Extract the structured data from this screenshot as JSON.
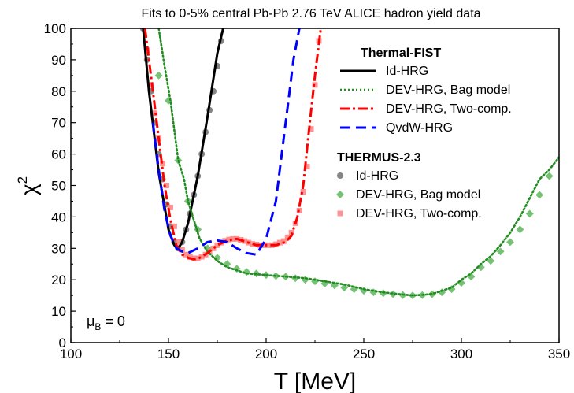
{
  "chart_data": {
    "type": "line",
    "title": "Fits to 0-5% central Pb-Pb 2.76 TeV ALICE hadron yield data",
    "xlabel": "T [MeV]",
    "ylabel_base": "χ",
    "ylabel_sup": "2",
    "xlim": [
      100,
      350
    ],
    "ylim": [
      0,
      100
    ],
    "xticks": [
      100,
      150,
      200,
      250,
      300,
      350
    ],
    "yticks": [
      0,
      10,
      20,
      30,
      40,
      50,
      60,
      70,
      80,
      90,
      100
    ],
    "annotation": {
      "base": "μ",
      "sub": "B",
      "rest": " = 0"
    },
    "legend": {
      "group1_title": "Thermal-FIST",
      "group2_title": "THERMUS-2.3"
    },
    "series": [
      {
        "name": "Id-HRG",
        "group": "Thermal-FIST",
        "style": "solid",
        "color": "#000000",
        "x": [
          137,
          140,
          145,
          150,
          153,
          155,
          157,
          160,
          165,
          170,
          175,
          178
        ],
        "y": [
          100,
          80,
          54,
          36,
          31,
          30,
          32,
          38,
          53,
          72,
          92,
          100
        ]
      },
      {
        "name": "DEV-HRG, Bag model",
        "group": "Thermal-FIST",
        "style": "dotted",
        "color": "#228B22",
        "x": [
          145,
          148,
          151,
          155,
          158,
          160,
          163,
          166,
          170,
          175,
          180,
          190,
          200,
          210,
          220,
          230,
          240,
          250,
          260,
          270,
          275,
          280,
          285,
          290,
          295,
          300,
          305,
          310,
          315,
          320,
          325,
          330,
          335,
          340,
          345,
          350
        ],
        "y": [
          100,
          88,
          77,
          58,
          52,
          45,
          39,
          33,
          29,
          26,
          24,
          22,
          21.5,
          21,
          20.5,
          19.5,
          18.5,
          17,
          16,
          15.3,
          15,
          15.2,
          15.5,
          16.5,
          17.5,
          20,
          22,
          25,
          27.5,
          31,
          35,
          40,
          46,
          52,
          55,
          59
        ]
      },
      {
        "name": "DEV-HRG, Two-comp.",
        "group": "Thermal-FIST",
        "style": "dashdot",
        "color": "#ff0000",
        "x": [
          138,
          142,
          145,
          148,
          151,
          154,
          157,
          160,
          163,
          166,
          170,
          175,
          180,
          185,
          190,
          195,
          200,
          205,
          210,
          213,
          216,
          219,
          222,
          225,
          228
        ],
        "y": [
          100,
          80,
          65,
          50,
          39,
          31,
          28,
          27,
          26.5,
          27,
          28.5,
          31,
          32.5,
          33,
          32,
          31,
          31,
          31,
          32,
          34,
          40,
          50,
          68,
          85,
          100
        ]
      },
      {
        "name": "QvdW-HRG",
        "group": "Thermal-FIST",
        "style": "dashed",
        "color": "#0000ff",
        "x": [
          142,
          145,
          148,
          151,
          154,
          157,
          160,
          165,
          170,
          175,
          180,
          185,
          190,
          195,
          200,
          205,
          208,
          211,
          214,
          217
        ],
        "y": [
          70,
          55,
          42,
          34,
          30,
          29,
          28.5,
          30,
          32,
          32.5,
          32,
          30,
          28.5,
          28,
          33,
          45,
          60,
          75,
          90,
          100
        ]
      },
      {
        "name": "Id-HRG",
        "group": "THERMUS-2.3",
        "style": "marker-circle",
        "color": "#707070",
        "x": [
          137,
          139,
          141,
          143,
          145,
          147,
          149,
          151,
          153,
          155,
          157,
          159,
          161,
          163,
          165,
          167,
          169,
          171,
          173,
          175,
          177
        ],
        "y": [
          100,
          90,
          80,
          70,
          60,
          52,
          44,
          37,
          32,
          30,
          32,
          36,
          41,
          47,
          53,
          60,
          67,
          74,
          80,
          88,
          96
        ]
      },
      {
        "name": "DEV-HRG, Bag model",
        "group": "THERMUS-2.3",
        "style": "marker-diamond",
        "color": "#66bb66",
        "x": [
          145,
          150,
          155,
          160,
          165,
          170,
          175,
          180,
          185,
          190,
          195,
          200,
          205,
          210,
          215,
          220,
          225,
          230,
          235,
          240,
          245,
          250,
          255,
          260,
          265,
          270,
          275,
          280,
          285,
          290,
          295,
          300,
          305,
          310,
          315,
          320,
          325,
          330,
          335,
          340,
          345
        ],
        "y": [
          85,
          77,
          58,
          45,
          36,
          30,
          27,
          25,
          23.5,
          22.5,
          22,
          21.5,
          21.2,
          21,
          20.5,
          20,
          19.5,
          18.8,
          18.2,
          17.5,
          17,
          16.5,
          16,
          15.7,
          15.4,
          15.1,
          15,
          15.1,
          15.4,
          16,
          17,
          19,
          21,
          24,
          26,
          29,
          32,
          36,
          41,
          47,
          53
        ]
      },
      {
        "name": "DEV-HRG, Two-comp.",
        "group": "THERMUS-2.3",
        "style": "marker-square",
        "color": "#ff8080",
        "x": [
          139,
          141,
          143,
          145,
          147,
          149,
          151,
          153,
          155,
          157,
          159,
          161,
          163,
          165,
          167,
          169,
          171,
          173,
          175,
          177,
          179,
          181,
          183,
          185,
          187,
          189,
          191,
          193,
          195,
          197,
          199,
          201,
          203,
          205,
          207,
          209,
          211,
          213,
          215,
          217,
          219,
          221,
          223,
          225,
          227
        ],
        "y": [
          93,
          82,
          73,
          65,
          57,
          50,
          43,
          37,
          32,
          29.5,
          28,
          27.2,
          26.8,
          26.8,
          27.3,
          28,
          29,
          30,
          31,
          31.8,
          32.4,
          32.8,
          33,
          33,
          32.7,
          32.3,
          31.8,
          31.4,
          31.2,
          31,
          31,
          31,
          31,
          31.3,
          31.8,
          32.3,
          33.5,
          35,
          38,
          42,
          48,
          56,
          68,
          82,
          96
        ]
      }
    ]
  }
}
